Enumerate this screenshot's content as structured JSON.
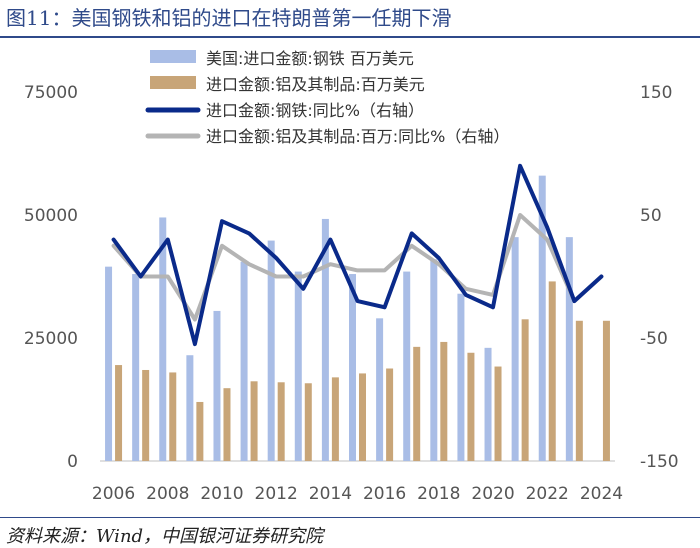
{
  "title": "图11：美国钢铁和铝的进口在特朗普第一任期下滑",
  "source": "资料来源：Wind，中国银河证券研究院",
  "chart_data": {
    "type": "bar",
    "title": "图11：美国钢铁和铝的进口在特朗普第一任期下滑",
    "xlabel": "",
    "ylabel": "",
    "ylim": [
      0,
      75000
    ],
    "y2lim": [
      -150,
      150
    ],
    "yticks": [
      "75000",
      "50000",
      "25000",
      "0"
    ],
    "y2ticks": [
      "150",
      "50",
      "-50",
      "-150"
    ],
    "xtick_labels": [
      "2006",
      "2008",
      "2010",
      "2012",
      "2014",
      "2016",
      "2018",
      "2020",
      "2022",
      "2024"
    ],
    "x": [
      2006,
      2007,
      2008,
      2009,
      2010,
      2011,
      2012,
      2013,
      2014,
      2015,
      2016,
      2017,
      2018,
      2019,
      2020,
      2021,
      2022,
      2023,
      2024
    ],
    "legend_position": "top",
    "grid": false,
    "series": [
      {
        "name": "美国:进口金额:钢铁 百万美元",
        "kind": "bar",
        "axis": "left",
        "color": "#a9bde6",
        "values": [
          39500,
          38000,
          49500,
          21500,
          30500,
          40500,
          44800,
          38500,
          49200,
          38000,
          29000,
          38500,
          41000,
          34000,
          23000,
          45500,
          58000,
          45500,
          null
        ]
      },
      {
        "name": "进口金额:铝及其制品:百万美元",
        "kind": "bar",
        "axis": "left",
        "color": "#c8a578",
        "values": [
          19500,
          18500,
          18000,
          12000,
          14800,
          16200,
          16000,
          15800,
          17000,
          17800,
          18800,
          23200,
          24200,
          22000,
          19200,
          28800,
          36500,
          28500,
          28500
        ]
      },
      {
        "name": "进口金额:钢铁:同比%（右轴）",
        "kind": "line",
        "axis": "right",
        "color": "#0a2a8a",
        "values": [
          30,
          0,
          30,
          -55,
          45,
          35,
          15,
          -10,
          30,
          -20,
          -25,
          35,
          15,
          -15,
          -25,
          90,
          40,
          -20,
          0
        ]
      },
      {
        "name": "进口金额:铝及其制品:百万:同比%（右轴）",
        "kind": "line",
        "axis": "right",
        "color": "#b4b4b4",
        "values": [
          25,
          0,
          0,
          -35,
          25,
          10,
          0,
          0,
          10,
          5,
          5,
          25,
          10,
          -10,
          -15,
          50,
          30,
          -20,
          0
        ]
      }
    ]
  }
}
